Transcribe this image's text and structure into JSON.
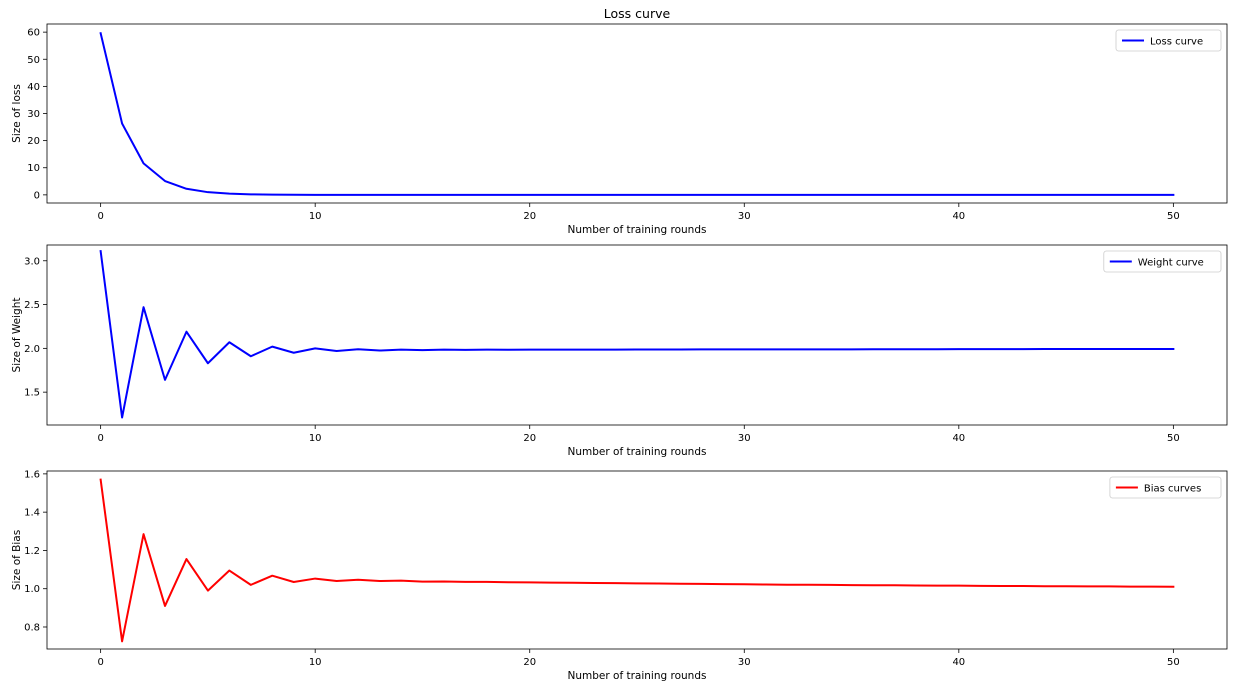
{
  "chart_data": [
    {
      "type": "line",
      "title": "Loss curve",
      "xlabel": "Number of training rounds",
      "ylabel": "Size of loss",
      "xlim": [
        -2.5,
        52.5
      ],
      "ylim": [
        -3,
        63
      ],
      "xticks": [
        0,
        10,
        20,
        30,
        40,
        50
      ],
      "yticks": [
        0,
        10,
        20,
        30,
        40,
        50,
        60
      ],
      "ytick_labels": [
        "0",
        "10",
        "20",
        "30",
        "40",
        "50",
        "60"
      ],
      "grid": false,
      "legend": "top-right",
      "x": [
        0,
        1,
        2,
        3,
        4,
        5,
        6,
        7,
        8,
        9,
        10,
        11,
        12,
        13,
        14,
        15,
        16,
        17,
        18,
        19,
        20,
        21,
        22,
        23,
        24,
        25,
        26,
        27,
        28,
        29,
        30,
        31,
        32,
        33,
        34,
        35,
        36,
        37,
        38,
        39,
        40,
        41,
        42,
        43,
        44,
        45,
        46,
        47,
        48,
        49,
        50
      ],
      "series": [
        {
          "name": "Loss curve",
          "color": "#0000ff",
          "values": [
            59.6,
            26.3,
            11.6,
            5.1,
            2.25,
            0.99,
            0.44,
            0.19,
            0.085,
            0.038,
            0.017,
            0.0074,
            0.0033,
            0.0015,
            0.00066,
            0.0003,
            0.0002,
            0.0002,
            0.0002,
            0.0002,
            0.0002,
            0.0002,
            0.0002,
            0.0002,
            0.0002,
            0.0002,
            0.0002,
            0.0002,
            0.0002,
            0.0002,
            0.0002,
            0.0002,
            0.0002,
            0.0002,
            0.0002,
            0.0002,
            0.0002,
            0.0002,
            0.0002,
            0.0002,
            0.0002,
            0.0002,
            0.0002,
            0.0002,
            0.0002,
            0.0002,
            0.0002,
            0.0002,
            0.0002,
            0.0002,
            0.0002
          ]
        }
      ]
    },
    {
      "type": "line",
      "title": "",
      "xlabel": "Number of training rounds",
      "ylabel": "Size of Weight",
      "xlim": [
        -2.5,
        52.5
      ],
      "ylim": [
        1.125,
        3.18
      ],
      "xticks": [
        0,
        10,
        20,
        30,
        40,
        50
      ],
      "yticks": [
        1.5,
        2.0,
        2.5,
        3.0
      ],
      "ytick_labels": [
        "1.5",
        "2.0",
        "2.5",
        "3.0"
      ],
      "grid": false,
      "legend": "top-right",
      "x": [
        0,
        1,
        2,
        3,
        4,
        5,
        6,
        7,
        8,
        9,
        10,
        11,
        12,
        13,
        14,
        15,
        16,
        17,
        18,
        19,
        20,
        21,
        22,
        23,
        24,
        25,
        26,
        27,
        28,
        29,
        30,
        31,
        32,
        33,
        34,
        35,
        36,
        37,
        38,
        39,
        40,
        41,
        42,
        43,
        44,
        45,
        46,
        47,
        48,
        49,
        50
      ],
      "series": [
        {
          "name": "Weight curve",
          "color": "#0000ff",
          "values": [
            3.11,
            1.21,
            2.47,
            1.64,
            2.19,
            1.83,
            2.07,
            1.91,
            2.02,
            1.95,
            2.0,
            1.97,
            1.99,
            1.975,
            1.985,
            1.98,
            1.985,
            1.983,
            1.985,
            1.984,
            1.985,
            1.985,
            1.986,
            1.986,
            1.986,
            1.987,
            1.987,
            1.987,
            1.988,
            1.988,
            1.988,
            1.988,
            1.989,
            1.989,
            1.989,
            1.989,
            1.99,
            1.99,
            1.99,
            1.99,
            1.991,
            1.991,
            1.991,
            1.991,
            1.992,
            1.992,
            1.992,
            1.992,
            1.993,
            1.993,
            1.993
          ]
        }
      ]
    },
    {
      "type": "line",
      "title": "",
      "xlabel": "Number of training rounds",
      "ylabel": "Size of Bias",
      "xlim": [
        -2.5,
        52.5
      ],
      "ylim": [
        0.685,
        1.615
      ],
      "xticks": [
        0,
        10,
        20,
        30,
        40,
        50
      ],
      "yticks": [
        0.8,
        1.0,
        1.2,
        1.4,
        1.6
      ],
      "ytick_labels": [
        "0.8",
        "1.0",
        "1.2",
        "1.4",
        "1.6"
      ],
      "grid": false,
      "legend": "top-right",
      "x": [
        0,
        1,
        2,
        3,
        4,
        5,
        6,
        7,
        8,
        9,
        10,
        11,
        12,
        13,
        14,
        15,
        16,
        17,
        18,
        19,
        20,
        21,
        22,
        23,
        24,
        25,
        26,
        27,
        28,
        29,
        30,
        31,
        32,
        33,
        34,
        35,
        36,
        37,
        38,
        39,
        40,
        41,
        42,
        43,
        44,
        45,
        46,
        47,
        48,
        49,
        50
      ],
      "series": [
        {
          "name": "Bias curves",
          "color": "#ff0000",
          "values": [
            1.57,
            0.725,
            1.285,
            0.91,
            1.155,
            0.99,
            1.095,
            1.02,
            1.068,
            1.035,
            1.053,
            1.04,
            1.047,
            1.04,
            1.042,
            1.037,
            1.038,
            1.036,
            1.036,
            1.034,
            1.033,
            1.032,
            1.031,
            1.03,
            1.029,
            1.028,
            1.027,
            1.026,
            1.025,
            1.024,
            1.023,
            1.022,
            1.021,
            1.021,
            1.02,
            1.019,
            1.018,
            1.018,
            1.017,
            1.016,
            1.016,
            1.015,
            1.014,
            1.014,
            1.013,
            1.013,
            1.012,
            1.012,
            1.011,
            1.011,
            1.01
          ]
        }
      ]
    }
  ]
}
